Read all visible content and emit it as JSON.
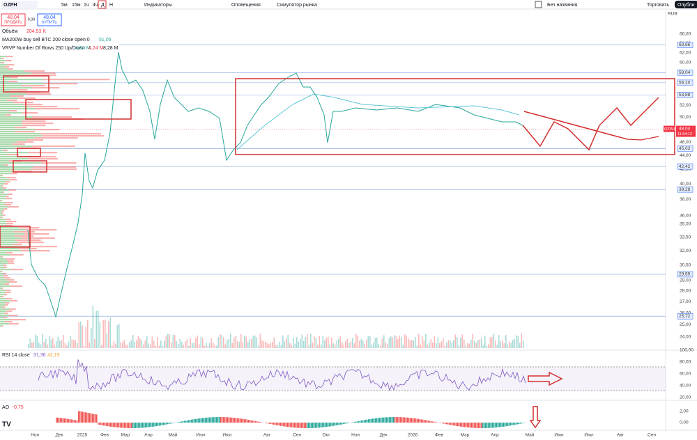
{
  "toolbar": {
    "symbol": "OZPH",
    "intervals": [
      "5м",
      "15м",
      "1ч",
      "4ч",
      "Д",
      "Н"
    ],
    "indicators": "Индикаторы",
    "alerts": "Оповещения",
    "replay": "Симулятор рынка",
    "layout_name": "Без названия",
    "trade": "Торговать",
    "publish": "Опубли"
  },
  "order": {
    "sell_price": "48,04",
    "sell": "ПРОДАТЬ",
    "spread": "0,00",
    "buy_price": "48,04",
    "buy": "КУПИТЬ"
  },
  "legend": {
    "volume": "Объём",
    "volume_value": "204,53 K",
    "ma": "MA200W buy sell BTC 200 close open 0",
    "ma_value": "51,05",
    "vrvp": "VRVP Number Of Rows 250 Up/Down",
    "vrvp_up": "4,04 M",
    "vrvp_down": "4,24 M",
    "vrvp_total": "8,28 M"
  },
  "price_axis": {
    "currency": "RUB",
    "labels": [
      "66,00",
      "64,00",
      "62,00",
      "60,00",
      "58,00",
      "56,00",
      "54,00",
      "52,00",
      "50,00",
      "48,00",
      "46,00",
      "44,00",
      "42,00",
      "40,00",
      "38,00",
      "36,00",
      "35,00",
      "33,50",
      "32,00",
      "30,50",
      "29,00",
      "28,00",
      "27,00",
      "26,00",
      "25,00",
      "24,00"
    ],
    "tags": [
      "63,66",
      "58,04",
      "56,10",
      "53,88",
      "45,03",
      "42,42",
      "39,28",
      "29,59",
      "25,72"
    ],
    "last_symbol": "OZPH",
    "last_price": "48,04",
    "countdown": "11:54:12"
  },
  "rsi": {
    "title": "RSI 14 close",
    "value": "31,36",
    "ma": "42,19",
    "labels": [
      "100,00",
      "80,00",
      "60,00",
      "40,00",
      "20,00"
    ]
  },
  "ao": {
    "title": "AO",
    "value": "−0,75",
    "labels": [
      "2,00",
      "0,00"
    ]
  },
  "time_axis": [
    "Ноя",
    "Дек",
    "2025",
    "Фев",
    "Мар",
    "Апр",
    "Май",
    "Июн",
    "Июл",
    "Авг",
    "Сен",
    "Окт",
    "Ноя",
    "Дек",
    "2026",
    "Фев",
    "Мар",
    "Апр",
    "Май",
    "Июн",
    "Июл",
    "Авг",
    "Сен"
  ]
}
